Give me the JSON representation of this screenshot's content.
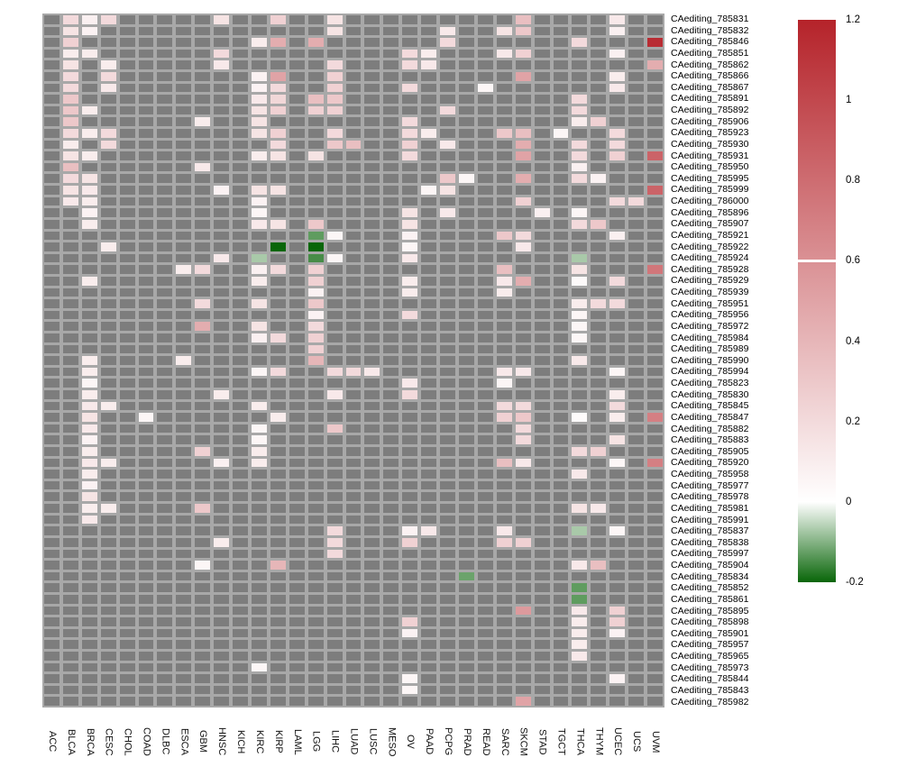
{
  "chart_data": {
    "type": "heatmap",
    "title": "",
    "xlabel": "",
    "ylabel": "",
    "grid": "on",
    "legend_position": "right",
    "columns": [
      "ACC",
      "BLCA",
      "BRCA",
      "CESC",
      "CHOL",
      "COAD",
      "DLBC",
      "ESCA",
      "GBM",
      "HNSC",
      "KICH",
      "KIRC",
      "KIRP",
      "LAML",
      "LGG",
      "LIHC",
      "LUAD",
      "LUSC",
      "MESO",
      "OV",
      "PAAD",
      "PCPG",
      "PRAD",
      "READ",
      "SARC",
      "SKCM",
      "STAD",
      "TGCT",
      "THCA",
      "THYM",
      "UCEC",
      "UCS",
      "UVM"
    ],
    "rows": [
      "CAediting_785831",
      "CAediting_785832",
      "CAediting_785846",
      "CAediting_785851",
      "CAediting_785862",
      "CAediting_785866",
      "CAediting_785867",
      "CAediting_785891",
      "CAediting_785892",
      "CAediting_785906",
      "CAediting_785923",
      "CAediting_785930",
      "CAediting_785931",
      "CAediting_785950",
      "CAediting_785995",
      "CAediting_785999",
      "CAediting_786000",
      "CAediting_785896",
      "CAediting_785907",
      "CAediting_785921",
      "CAediting_785922",
      "CAediting_785924",
      "CAediting_785928",
      "CAediting_785929",
      "CAediting_785939",
      "CAediting_785951",
      "CAediting_785956",
      "CAediting_785972",
      "CAediting_785984",
      "CAediting_785989",
      "CAediting_785990",
      "CAediting_785994",
      "CAediting_785823",
      "CAediting_785830",
      "CAediting_785845",
      "CAediting_785847",
      "CAediting_785882",
      "CAediting_785883",
      "CAediting_785905",
      "CAediting_785920",
      "CAediting_785958",
      "CAediting_785977",
      "CAediting_785978",
      "CAediting_785981",
      "CAediting_785991",
      "CAediting_785837",
      "CAediting_785838",
      "CAediting_785997",
      "CAediting_785904",
      "CAediting_785834",
      "CAediting_785852",
      "CAediting_785861",
      "CAediting_785895",
      "CAediting_785898",
      "CAediting_785901",
      "CAediting_785957",
      "CAediting_785965",
      "CAediting_785973",
      "CAediting_785844",
      "CAediting_785843",
      "CAediting_785982"
    ],
    "na_note": "gray cells are missing values (NA)",
    "cells": [
      [
        [
          "BLCA",
          0.2
        ],
        [
          "BRCA",
          0.08
        ],
        [
          "CESC",
          0.2
        ],
        [
          "HNSC",
          0.15
        ],
        [
          "KIRP",
          0.25
        ],
        [
          "LIHC",
          0.15
        ],
        [
          "SKCM",
          0.35
        ],
        [
          "UCEC",
          0.12
        ]
      ],
      [
        [
          "BLCA",
          0.15
        ],
        [
          "BRCA",
          0.07
        ],
        [
          "LIHC",
          0.15
        ],
        [
          "PCPG",
          0.12
        ],
        [
          "SARC",
          0.15
        ],
        [
          "SKCM",
          0.3
        ],
        [
          "UCEC",
          0.08
        ]
      ],
      [
        [
          "BLCA",
          0.25
        ],
        [
          "KIRC",
          0.1
        ],
        [
          "KIRP",
          0.45
        ],
        [
          "LGG",
          0.45
        ],
        [
          "PCPG",
          0.2
        ],
        [
          "THCA",
          0.2
        ],
        [
          "UVM",
          1.15
        ]
      ],
      [
        [
          "BLCA",
          0.1
        ],
        [
          "BRCA",
          0.1
        ],
        [
          "HNSC",
          0.2
        ],
        [
          "OV",
          0.2
        ],
        [
          "PAAD",
          0.1
        ],
        [
          "SARC",
          0.12
        ],
        [
          "SKCM",
          0.25
        ],
        [
          "UCEC",
          0.08
        ]
      ],
      [
        [
          "BLCA",
          0.15
        ],
        [
          "CESC",
          0.1
        ],
        [
          "HNSC",
          0.12
        ],
        [
          "LIHC",
          0.2
        ],
        [
          "OV",
          0.2
        ],
        [
          "PAAD",
          0.12
        ],
        [
          "UVM",
          0.45
        ]
      ],
      [
        [
          "BLCA",
          0.2
        ],
        [
          "CESC",
          0.2
        ],
        [
          "KIRC",
          0.07
        ],
        [
          "KIRP",
          0.5
        ],
        [
          "LIHC",
          0.25
        ],
        [
          "SKCM",
          0.5
        ],
        [
          "UCEC",
          0.1
        ]
      ],
      [
        [
          "BLCA",
          0.2
        ],
        [
          "CESC",
          0.12
        ],
        [
          "KIRC",
          0.07
        ],
        [
          "KIRP",
          0.2
        ],
        [
          "LIHC",
          0.25
        ],
        [
          "OV",
          0.2
        ],
        [
          "READ",
          0.05
        ],
        [
          "UCEC",
          0.12
        ]
      ],
      [
        [
          "BLCA",
          0.3
        ],
        [
          "KIRC",
          0.12
        ],
        [
          "KIRP",
          0.22
        ],
        [
          "LGG",
          0.35
        ],
        [
          "LIHC",
          0.3
        ],
        [
          "THCA",
          0.2
        ]
      ],
      [
        [
          "BLCA",
          0.3
        ],
        [
          "BRCA",
          0.1
        ],
        [
          "KIRC",
          0.15
        ],
        [
          "KIRP",
          0.25
        ],
        [
          "LGG",
          0.25
        ],
        [
          "LIHC",
          0.25
        ],
        [
          "PCPG",
          0.2
        ],
        [
          "THCA",
          0.2
        ]
      ],
      [
        [
          "BLCA",
          0.3
        ],
        [
          "GBM",
          0.1
        ],
        [
          "KIRC",
          0.15
        ],
        [
          "OV",
          0.2
        ],
        [
          "THCA",
          0.1
        ],
        [
          "THYM",
          0.25
        ]
      ],
      [
        [
          "BLCA",
          0.2
        ],
        [
          "BRCA",
          0.1
        ],
        [
          "CESC",
          0.2
        ],
        [
          "KIRC",
          0.15
        ],
        [
          "KIRP",
          0.25
        ],
        [
          "LIHC",
          0.2
        ],
        [
          "OV",
          0.2
        ],
        [
          "PAAD",
          0.1
        ],
        [
          "SARC",
          0.3
        ],
        [
          "SKCM",
          0.35
        ],
        [
          "TGCT",
          0.05
        ],
        [
          "UCEC",
          0.2
        ]
      ],
      [
        [
          "BLCA",
          0.1
        ],
        [
          "CESC",
          0.2
        ],
        [
          "KIRP",
          0.2
        ],
        [
          "LIHC",
          0.3
        ],
        [
          "LUAD",
          0.35
        ],
        [
          "OV",
          0.25
        ],
        [
          "PCPG",
          0.12
        ],
        [
          "SKCM",
          0.45
        ],
        [
          "THCA",
          0.2
        ],
        [
          "UCEC",
          0.2
        ]
      ],
      [
        [
          "BLCA",
          0.15
        ],
        [
          "BRCA",
          0.1
        ],
        [
          "KIRC",
          0.1
        ],
        [
          "KIRP",
          0.15
        ],
        [
          "LGG",
          0.15
        ],
        [
          "OV",
          0.2
        ],
        [
          "SKCM",
          0.5
        ],
        [
          "THCA",
          0.2
        ],
        [
          "UCEC",
          0.25
        ],
        [
          "UVM",
          0.85
        ]
      ],
      [
        [
          "BLCA",
          0.35
        ],
        [
          "GBM",
          0.12
        ],
        [
          "THCA",
          0.08
        ]
      ],
      [
        [
          "BLCA",
          0.2
        ],
        [
          "BRCA",
          0.15
        ],
        [
          "PCPG",
          0.3
        ],
        [
          "PRAD",
          0.05
        ],
        [
          "SKCM",
          0.45
        ],
        [
          "THCA",
          0.2
        ],
        [
          "THYM",
          0.07
        ]
      ],
      [
        [
          "BLCA",
          0.15
        ],
        [
          "BRCA",
          0.12
        ],
        [
          "HNSC",
          0.07
        ],
        [
          "KIRC",
          0.15
        ],
        [
          "KIRP",
          0.15
        ],
        [
          "PAAD",
          0.05
        ],
        [
          "PCPG",
          0.15
        ],
        [
          "UVM",
          0.85
        ]
      ],
      [
        [
          "BLCA",
          0.12
        ],
        [
          "BRCA",
          0.1
        ],
        [
          "KIRC",
          0.07
        ],
        [
          "SKCM",
          0.25
        ],
        [
          "UCEC",
          0.2
        ],
        [
          "UCS",
          0.2
        ]
      ],
      [
        [
          "BRCA",
          0.07
        ],
        [
          "KIRC",
          0.05
        ],
        [
          "OV",
          0.15
        ],
        [
          "PCPG",
          0.12
        ],
        [
          "STAD",
          0.08
        ],
        [
          "THCA",
          0.05
        ]
      ],
      [
        [
          "BRCA",
          0.1
        ],
        [
          "KIRC",
          0.12
        ],
        [
          "KIRP",
          0.15
        ],
        [
          "LGG",
          0.3
        ],
        [
          "OV",
          0.15
        ],
        [
          "THCA",
          0.2
        ],
        [
          "THYM",
          0.3
        ]
      ],
      [
        [
          "LGG",
          -0.13
        ],
        [
          "LIHC",
          0.05
        ],
        [
          "OV",
          0.07
        ],
        [
          "SARC",
          0.3
        ],
        [
          "SKCM",
          0.2
        ],
        [
          "UCEC",
          0.08
        ]
      ],
      [
        [
          "CESC",
          0.1
        ],
        [
          "KIRP",
          -0.2
        ],
        [
          "LGG",
          -0.2
        ],
        [
          "OV",
          0.05
        ],
        [
          "SKCM",
          0.12
        ]
      ],
      [
        [
          "HNSC",
          0.12
        ],
        [
          "KIRC",
          -0.07
        ],
        [
          "LGG",
          -0.15
        ],
        [
          "LIHC",
          0.05
        ],
        [
          "OV",
          0.12
        ],
        [
          "THCA",
          -0.07
        ]
      ],
      [
        [
          "ESCA",
          0.1
        ],
        [
          "GBM",
          0.2
        ],
        [
          "KIRC",
          0.08
        ],
        [
          "KIRP",
          0.2
        ],
        [
          "LGG",
          0.25
        ],
        [
          "SARC",
          0.35
        ],
        [
          "THCA",
          0.15
        ],
        [
          "UVM",
          0.75
        ]
      ],
      [
        [
          "BRCA",
          0.1
        ],
        [
          "KIRC",
          0.1
        ],
        [
          "LGG",
          0.25
        ],
        [
          "OV",
          0.1
        ],
        [
          "SARC",
          0.12
        ],
        [
          "SKCM",
          0.45
        ],
        [
          "THCA",
          0.03
        ],
        [
          "UCEC",
          0.2
        ]
      ],
      [
        [
          "LGG",
          0.07
        ],
        [
          "OV",
          0.1
        ],
        [
          "SARC",
          0.1
        ]
      ],
      [
        [
          "GBM",
          0.2
        ],
        [
          "KIRC",
          0.15
        ],
        [
          "LGG",
          0.3
        ],
        [
          "THCA",
          0.1
        ],
        [
          "THYM",
          0.2
        ],
        [
          "UCEC",
          0.2
        ]
      ],
      [
        [
          "LGG",
          0.07
        ],
        [
          "OV",
          0.2
        ],
        [
          "THCA",
          0.05
        ]
      ],
      [
        [
          "GBM",
          0.45
        ],
        [
          "KIRC",
          0.15
        ],
        [
          "LGG",
          0.2
        ],
        [
          "THCA",
          0.05
        ]
      ],
      [
        [
          "KIRC",
          0.08
        ],
        [
          "KIRP",
          0.2
        ],
        [
          "LGG",
          0.25
        ],
        [
          "THCA",
          0.05
        ]
      ],
      [
        [
          "LGG",
          0.25
        ]
      ],
      [
        [
          "BRCA",
          0.1
        ],
        [
          "ESCA",
          0.1
        ],
        [
          "LGG",
          0.4
        ],
        [
          "THCA",
          0.12
        ]
      ],
      [
        [
          "BRCA",
          0.1
        ],
        [
          "KIRC",
          0.05
        ],
        [
          "KIRP",
          0.2
        ],
        [
          "LIHC",
          0.2
        ],
        [
          "LUAD",
          0.2
        ],
        [
          "LUSC",
          0.12
        ],
        [
          "SARC",
          0.12
        ],
        [
          "SKCM",
          0.12
        ],
        [
          "UCEC",
          0.05
        ]
      ],
      [
        [
          "BRCA",
          0.05
        ],
        [
          "OV",
          0.12
        ],
        [
          "SARC",
          0.05
        ]
      ],
      [
        [
          "BRCA",
          0.1
        ],
        [
          "HNSC",
          0.1
        ],
        [
          "LIHC",
          0.12
        ],
        [
          "OV",
          0.2
        ],
        [
          "UCEC",
          0.1
        ]
      ],
      [
        [
          "BRCA",
          0.12
        ],
        [
          "CESC",
          0.1
        ],
        [
          "KIRC",
          0.1
        ],
        [
          "SARC",
          0.2
        ],
        [
          "SKCM",
          0.2
        ],
        [
          "UCEC",
          0.2
        ]
      ],
      [
        [
          "BRCA",
          0.15
        ],
        [
          "COAD",
          0.05
        ],
        [
          "KIRP",
          0.1
        ],
        [
          "SARC",
          0.25
        ],
        [
          "SKCM",
          0.3
        ],
        [
          "THCA",
          0.02
        ],
        [
          "UCEC",
          0.1
        ],
        [
          "UVM",
          0.7
        ]
      ],
      [
        [
          "BRCA",
          0.12
        ],
        [
          "KIRC",
          0.05
        ],
        [
          "LIHC",
          0.3
        ],
        [
          "SKCM",
          0.2
        ]
      ],
      [
        [
          "BRCA",
          0.07
        ],
        [
          "KIRC",
          0.05
        ],
        [
          "SKCM",
          0.2
        ],
        [
          "UCEC",
          0.15
        ]
      ],
      [
        [
          "BRCA",
          0.1
        ],
        [
          "GBM",
          0.25
        ],
        [
          "KIRC",
          0.1
        ],
        [
          "THCA",
          0.2
        ],
        [
          "THYM",
          0.25
        ]
      ],
      [
        [
          "BRCA",
          0.12
        ],
        [
          "CESC",
          0.1
        ],
        [
          "HNSC",
          0.08
        ],
        [
          "KIRC",
          0.1
        ],
        [
          "SARC",
          0.35
        ],
        [
          "SKCM",
          0.12
        ],
        [
          "UCEC",
          0.05
        ],
        [
          "UVM",
          0.7
        ]
      ],
      [
        [
          "BRCA",
          0.1
        ],
        [
          "THCA",
          0.12
        ]
      ],
      [
        [
          "BRCA",
          0.07
        ]
      ],
      [
        [
          "BRCA",
          0.15
        ]
      ],
      [
        [
          "BRCA",
          0.1
        ],
        [
          "CESC",
          0.1
        ],
        [
          "GBM",
          0.3
        ],
        [
          "THCA",
          0.15
        ],
        [
          "THYM",
          0.12
        ]
      ],
      [
        [
          "BRCA",
          0.12
        ]
      ],
      [
        [
          "LIHC",
          0.2
        ],
        [
          "OV",
          0.07
        ],
        [
          "PAAD",
          0.12
        ],
        [
          "SARC",
          0.12
        ],
        [
          "THCA",
          -0.07
        ],
        [
          "UCEC",
          0.05
        ]
      ],
      [
        [
          "HNSC",
          0.1
        ],
        [
          "LIHC",
          0.2
        ],
        [
          "OV",
          0.25
        ],
        [
          "SARC",
          0.25
        ],
        [
          "SKCM",
          0.25
        ]
      ],
      [
        [
          "LIHC",
          0.2
        ]
      ],
      [
        [
          "GBM",
          0.05
        ],
        [
          "KIRP",
          0.4
        ],
        [
          "THCA",
          0.12
        ],
        [
          "THYM",
          0.35
        ]
      ],
      [
        [
          "PRAD",
          -0.12
        ]
      ],
      [
        [
          "THCA",
          -0.13
        ]
      ],
      [
        [
          "THCA",
          -0.13
        ]
      ],
      [
        [
          "SKCM",
          0.55
        ],
        [
          "THCA",
          0.12
        ],
        [
          "UCEC",
          0.25
        ]
      ],
      [
        [
          "OV",
          0.25
        ],
        [
          "THCA",
          0.1
        ],
        [
          "UCEC",
          0.25
        ]
      ],
      [
        [
          "OV",
          0.07
        ],
        [
          "THCA",
          0.1
        ],
        [
          "UCEC",
          0.07
        ]
      ],
      [
        [
          "THCA",
          0.1
        ]
      ],
      [
        [
          "THCA",
          0.12
        ]
      ],
      [
        [
          "KIRC",
          0.05
        ]
      ],
      [
        [
          "OV",
          0.05
        ],
        [
          "UCEC",
          0.07
        ]
      ],
      [
        [
          "OV",
          0.05
        ]
      ],
      [
        [
          "SKCM",
          0.5
        ]
      ]
    ],
    "legend": {
      "min": -0.2,
      "max": 1.2,
      "tick_values": [
        1.2,
        1,
        0.8,
        0.6,
        0.4,
        0.2,
        0,
        -0.2
      ],
      "tick_labels": [
        "1.2",
        "1",
        "0.8",
        "0.6",
        "0.4",
        "0.2",
        "0",
        "-0.2"
      ],
      "break_line_value": 0.6
    },
    "colors": {
      "positive_max": "#b5232a",
      "zero": "#ffffff",
      "negative_min": "#096609",
      "na_cell": "#7d7d7d",
      "grid_gap": "#a8a8a8",
      "break_line": "#ffffff"
    }
  }
}
